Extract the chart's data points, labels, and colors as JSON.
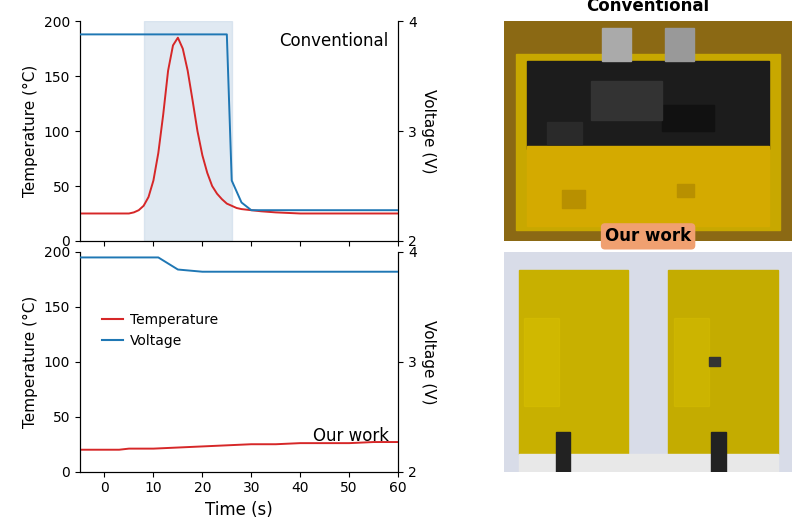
{
  "conv_temp_x": [
    -5,
    -4,
    -3,
    -2,
    -1,
    0,
    1,
    2,
    3,
    4,
    5,
    6,
    7,
    8,
    9,
    10,
    11,
    12,
    13,
    14,
    15,
    16,
    17,
    18,
    19,
    20,
    21,
    22,
    23,
    24,
    25,
    26,
    27,
    28,
    30,
    32,
    35,
    40,
    45,
    50,
    55,
    60
  ],
  "conv_temp_y": [
    25,
    25,
    25,
    25,
    25,
    25,
    25,
    25,
    25,
    25,
    25,
    26,
    28,
    32,
    40,
    55,
    80,
    115,
    155,
    178,
    185,
    175,
    155,
    128,
    100,
    78,
    62,
    50,
    43,
    38,
    34,
    32,
    30,
    29,
    28,
    27,
    26,
    25,
    25,
    25,
    25,
    25
  ],
  "conv_volt_x": [
    -5,
    -4,
    -3,
    -2,
    -1,
    0,
    0.5,
    1,
    2,
    3,
    4,
    5,
    6,
    7,
    8,
    9,
    10,
    11,
    12,
    13,
    14,
    15,
    16,
    17,
    18,
    19,
    20,
    21,
    22,
    23,
    24,
    24.5,
    25,
    26,
    28,
    30,
    35,
    40,
    45,
    50,
    55,
    60
  ],
  "conv_volt_y": [
    3.88,
    3.88,
    3.88,
    3.88,
    3.88,
    3.88,
    3.88,
    3.88,
    3.88,
    3.88,
    3.88,
    3.88,
    3.88,
    3.88,
    3.88,
    3.88,
    3.88,
    3.88,
    3.88,
    3.88,
    3.88,
    3.88,
    3.88,
    3.88,
    3.88,
    3.88,
    3.88,
    3.88,
    3.88,
    3.88,
    3.88,
    3.88,
    3.88,
    2.55,
    2.35,
    2.28,
    2.28,
    2.28,
    2.28,
    2.28,
    2.28,
    2.28
  ],
  "our_temp_x": [
    -5,
    -3,
    -1,
    0,
    1,
    2,
    3,
    4,
    5,
    6,
    7,
    8,
    9,
    10,
    15,
    20,
    25,
    30,
    35,
    40,
    45,
    50,
    55,
    60
  ],
  "our_temp_y": [
    20,
    20,
    20,
    20,
    20,
    20,
    20,
    20.5,
    21,
    21,
    21,
    21,
    21,
    21,
    22,
    23,
    24,
    25,
    25,
    26,
    26,
    26,
    27,
    27
  ],
  "our_volt_x": [
    -5,
    -4,
    -3,
    -2,
    -1,
    0,
    0.5,
    1,
    2,
    3,
    4,
    5,
    6,
    7,
    8,
    9,
    10,
    11,
    15,
    20,
    25,
    30,
    35,
    40,
    45,
    50,
    55,
    60
  ],
  "our_volt_y": [
    3.95,
    3.95,
    3.95,
    3.95,
    3.95,
    3.95,
    3.95,
    3.95,
    3.95,
    3.95,
    3.95,
    3.95,
    3.95,
    3.95,
    3.95,
    3.95,
    3.95,
    3.95,
    3.84,
    3.82,
    3.82,
    3.82,
    3.82,
    3.82,
    3.82,
    3.82,
    3.82,
    3.82
  ],
  "shade_xmin": 8,
  "shade_xmax": 26,
  "xlim": [
    -5,
    60
  ],
  "ylim_temp": [
    0,
    200
  ],
  "ylim_volt": [
    2,
    4
  ],
  "xticks": [
    0,
    10,
    20,
    30,
    40,
    50,
    60
  ],
  "yticks_temp": [
    0,
    50,
    100,
    150,
    200
  ],
  "yticks_volt": [
    2,
    3,
    4
  ],
  "xlabel": "Time (s)",
  "ylabel_temp": "Temperature (°C)",
  "ylabel_volt": "Voltage (V)",
  "label_conv": "Conventional",
  "label_our": "Our work",
  "legend_temp": "Temperature",
  "legend_volt": "Voltage",
  "color_temp": "#d62728",
  "color_volt": "#1f77b4",
  "shade_color": "#c8d8e8",
  "shade_alpha": 0.55,
  "conv_photo_label": "Conventional",
  "our_photo_label": "Our work",
  "our_label_bg": "#f0a070",
  "bg_white": "#ffffff"
}
